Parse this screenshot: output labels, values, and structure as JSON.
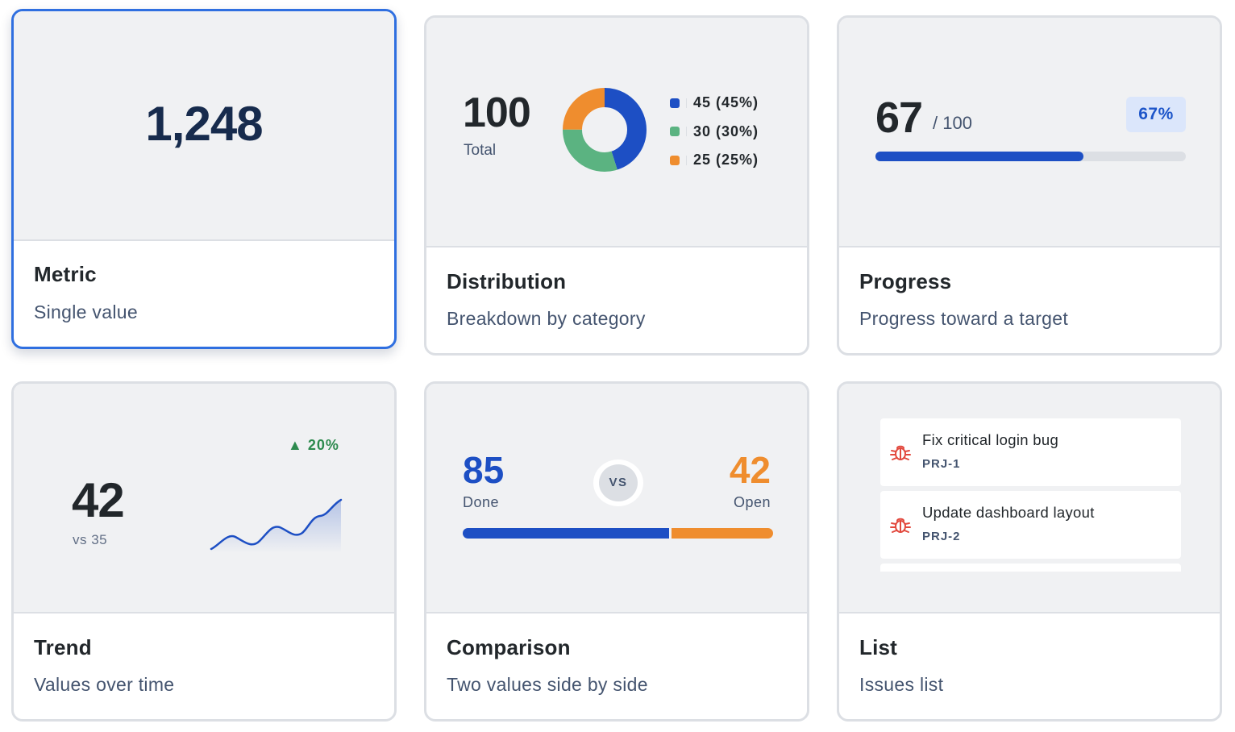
{
  "cards": {
    "metric": {
      "value": "1,248",
      "title": "Metric",
      "description": "Single value"
    },
    "distribution": {
      "total_value": "100",
      "total_label": "Total",
      "title": "Distribution",
      "description": "Breakdown by category",
      "segments": [
        {
          "value": 45,
          "label": "45 (45%)",
          "color": "#1d4fc4"
        },
        {
          "value": 30,
          "label": "30 (30%)",
          "color": "#5bb381"
        },
        {
          "value": 25,
          "label": "25 (25%)",
          "color": "#ef8d2e"
        }
      ]
    },
    "progress": {
      "value": "67",
      "target": "/ 100",
      "percent_label": "67%",
      "fraction": 0.67,
      "title": "Progress",
      "description": "Progress toward a target"
    },
    "trend": {
      "value": "42",
      "comparison": "vs 35",
      "delta": "▲ 20%",
      "title": "Trend",
      "description": "Values over time"
    },
    "comparison": {
      "left_value": "85",
      "left_label": "Done",
      "right_value": "42",
      "right_label": "Open",
      "vs_label": "VS",
      "title": "Comparison",
      "description": "Two values side by side"
    },
    "list": {
      "title": "List",
      "description": "Issues list",
      "items": [
        {
          "title": "Fix critical login bug",
          "key": "PRJ-1",
          "icon": "bug-icon"
        },
        {
          "title": "Update dashboard layout",
          "key": "PRJ-2",
          "icon": "bug-icon"
        }
      ]
    }
  },
  "colors": {
    "selected_border": "#2f6fe0",
    "primary_blue": "#1d4fc4",
    "orange": "#ef8d2e",
    "green": "#5bb381",
    "bug_red": "#e2483d"
  }
}
